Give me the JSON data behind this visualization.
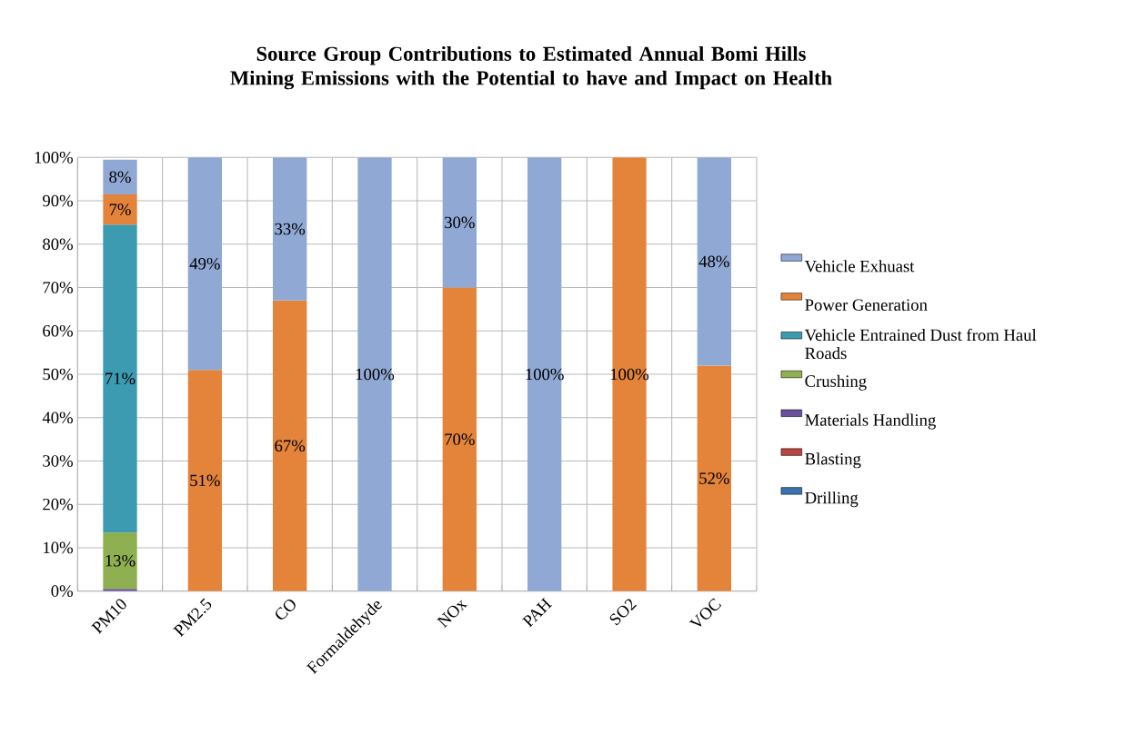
{
  "chart_data": {
    "type": "bar",
    "stacked": true,
    "title": "Source Group Contributions to Estimated Annual Bomi Hills Mining Emissions with the Potential to have and Impact on Health",
    "categories": [
      "PM10",
      "PM2.5",
      "CO",
      "Formaldehyde",
      "NOx",
      "PAH",
      "SO2",
      "VOC"
    ],
    "series": [
      {
        "name": "Drilling",
        "color": "#3c72b0",
        "values": [
          null,
          null,
          null,
          null,
          null,
          null,
          null,
          null
        ]
      },
      {
        "name": "Blasting",
        "color": "#b94441",
        "values": [
          null,
          null,
          null,
          null,
          null,
          null,
          null,
          null
        ]
      },
      {
        "name": "Materials Handling",
        "color": "#6b4f9a",
        "values": [
          0.5,
          null,
          null,
          null,
          null,
          null,
          null,
          null
        ]
      },
      {
        "name": "Crushing",
        "color": "#8fb050",
        "values": [
          13,
          null,
          null,
          null,
          null,
          null,
          null,
          null
        ],
        "value_labels": [
          "13%",
          null,
          null,
          null,
          null,
          null,
          null,
          null
        ]
      },
      {
        "name": "Vehicle Entrained Dust from Haul Roads",
        "color": "#3c9ab1",
        "values": [
          71,
          null,
          null,
          null,
          null,
          null,
          null,
          null
        ],
        "value_labels": [
          "71%",
          null,
          null,
          null,
          null,
          null,
          null,
          null
        ]
      },
      {
        "name": "Power Generation",
        "color": "#e3843a",
        "values": [
          7,
          51,
          67,
          null,
          70,
          null,
          100,
          52
        ],
        "value_labels": [
          "7%",
          "51%",
          "67%",
          null,
          "70%",
          null,
          "100%",
          "52%"
        ]
      },
      {
        "name": "Vehicle Exhuast",
        "color": "#8fa8d4",
        "values": [
          8,
          49,
          33,
          100,
          30,
          100,
          null,
          48
        ],
        "value_labels": [
          "8%",
          "49%",
          "33%",
          "100%",
          "30%",
          "100%",
          null,
          "48%"
        ]
      }
    ],
    "ylim": [
      0,
      100
    ],
    "yticks": [
      {
        "value": 0,
        "label": "0%"
      },
      {
        "value": 10,
        "label": "10%"
      },
      {
        "value": 20,
        "label": "20%"
      },
      {
        "value": 30,
        "label": "30%"
      },
      {
        "value": 40,
        "label": "40%"
      },
      {
        "value": 50,
        "label": "50%"
      },
      {
        "value": 60,
        "label": "60%"
      },
      {
        "value": 70,
        "label": "70%"
      },
      {
        "value": 80,
        "label": "80%"
      },
      {
        "value": 90,
        "label": "90%"
      },
      {
        "value": 100,
        "label": "100%"
      }
    ],
    "grid": true,
    "legend": "right"
  }
}
